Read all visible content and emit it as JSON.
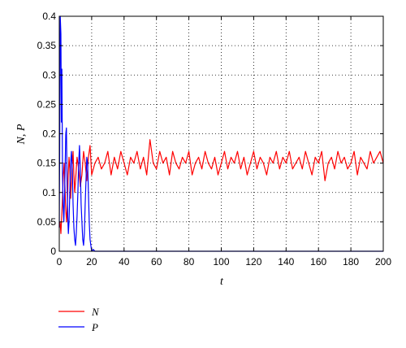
{
  "chart_data": {
    "type": "line",
    "title": "",
    "xlabel": "t",
    "ylabel": "N, P",
    "xlim": [
      0,
      200
    ],
    "ylim": [
      0,
      0.4
    ],
    "xticks": [
      "0",
      "20",
      "40",
      "60",
      "80",
      "100",
      "120",
      "140",
      "160",
      "180",
      "200"
    ],
    "yticks": [
      "0",
      "0.05",
      "0.1",
      "0.15",
      "0.2",
      "0.25",
      "0.3",
      "0.35",
      "0.4"
    ],
    "grid": true,
    "legend_position": "bottom-left",
    "series": [
      {
        "name": "N",
        "color": "#ff0000",
        "points": [
          [
            0,
            0.04
          ],
          [
            0.5,
            0.05
          ],
          [
            1,
            0.03
          ],
          [
            1.5,
            0.06
          ],
          [
            2,
            0.09
          ],
          [
            2.5,
            0.13
          ],
          [
            3,
            0.15
          ],
          [
            3.5,
            0.11
          ],
          [
            4,
            0.07
          ],
          [
            4.5,
            0.05
          ],
          [
            5,
            0.08
          ],
          [
            5.5,
            0.13
          ],
          [
            6,
            0.16
          ],
          [
            6.5,
            0.14
          ],
          [
            7,
            0.09
          ],
          [
            7.5,
            0.12
          ],
          [
            8,
            0.15
          ],
          [
            8.5,
            0.17
          ],
          [
            9,
            0.13
          ],
          [
            9.5,
            0.1
          ],
          [
            10,
            0.12
          ],
          [
            11,
            0.16
          ],
          [
            12,
            0.14
          ],
          [
            13,
            0.11
          ],
          [
            14,
            0.13
          ],
          [
            15,
            0.17
          ],
          [
            16,
            0.15
          ],
          [
            17,
            0.12
          ],
          [
            18,
            0.16
          ],
          [
            19,
            0.18
          ],
          [
            20,
            0.13
          ],
          [
            22,
            0.15
          ],
          [
            24,
            0.16
          ],
          [
            26,
            0.14
          ],
          [
            28,
            0.15
          ],
          [
            30,
            0.17
          ],
          [
            32,
            0.13
          ],
          [
            34,
            0.16
          ],
          [
            36,
            0.14
          ],
          [
            38,
            0.17
          ],
          [
            40,
            0.15
          ],
          [
            42,
            0.13
          ],
          [
            44,
            0.16
          ],
          [
            46,
            0.15
          ],
          [
            48,
            0.17
          ],
          [
            50,
            0.14
          ],
          [
            52,
            0.16
          ],
          [
            54,
            0.13
          ],
          [
            56,
            0.19
          ],
          [
            58,
            0.15
          ],
          [
            60,
            0.14
          ],
          [
            62,
            0.17
          ],
          [
            64,
            0.15
          ],
          [
            66,
            0.16
          ],
          [
            68,
            0.13
          ],
          [
            70,
            0.17
          ],
          [
            72,
            0.15
          ],
          [
            74,
            0.14
          ],
          [
            76,
            0.16
          ],
          [
            78,
            0.15
          ],
          [
            80,
            0.17
          ],
          [
            82,
            0.13
          ],
          [
            84,
            0.15
          ],
          [
            86,
            0.16
          ],
          [
            88,
            0.14
          ],
          [
            90,
            0.17
          ],
          [
            92,
            0.15
          ],
          [
            94,
            0.14
          ],
          [
            96,
            0.16
          ],
          [
            98,
            0.13
          ],
          [
            100,
            0.15
          ],
          [
            102,
            0.17
          ],
          [
            104,
            0.14
          ],
          [
            106,
            0.16
          ],
          [
            108,
            0.15
          ],
          [
            110,
            0.17
          ],
          [
            112,
            0.14
          ],
          [
            114,
            0.16
          ],
          [
            116,
            0.13
          ],
          [
            118,
            0.15
          ],
          [
            120,
            0.17
          ],
          [
            122,
            0.14
          ],
          [
            124,
            0.16
          ],
          [
            126,
            0.15
          ],
          [
            128,
            0.13
          ],
          [
            130,
            0.16
          ],
          [
            132,
            0.15
          ],
          [
            134,
            0.17
          ],
          [
            136,
            0.14
          ],
          [
            138,
            0.16
          ],
          [
            140,
            0.15
          ],
          [
            142,
            0.17
          ],
          [
            144,
            0.14
          ],
          [
            146,
            0.15
          ],
          [
            148,
            0.16
          ],
          [
            150,
            0.14
          ],
          [
            152,
            0.17
          ],
          [
            154,
            0.15
          ],
          [
            156,
            0.13
          ],
          [
            158,
            0.16
          ],
          [
            160,
            0.15
          ],
          [
            162,
            0.17
          ],
          [
            164,
            0.12
          ],
          [
            166,
            0.15
          ],
          [
            168,
            0.16
          ],
          [
            170,
            0.14
          ],
          [
            172,
            0.17
          ],
          [
            174,
            0.15
          ],
          [
            176,
            0.16
          ],
          [
            178,
            0.14
          ],
          [
            180,
            0.15
          ],
          [
            182,
            0.17
          ],
          [
            184,
            0.13
          ],
          [
            186,
            0.16
          ],
          [
            188,
            0.15
          ],
          [
            190,
            0.14
          ],
          [
            192,
            0.17
          ],
          [
            194,
            0.15
          ],
          [
            196,
            0.16
          ],
          [
            198,
            0.17
          ],
          [
            200,
            0.15
          ]
        ]
      },
      {
        "name": "P",
        "color": "#0000ff",
        "points": [
          [
            0,
            0.04
          ],
          [
            0.3,
            0.2
          ],
          [
            0.6,
            0.4
          ],
          [
            1,
            0.37
          ],
          [
            1.3,
            0.22
          ],
          [
            1.6,
            0.31
          ],
          [
            2,
            0.13
          ],
          [
            2.4,
            0.08
          ],
          [
            2.8,
            0.05
          ],
          [
            3.2,
            0.09
          ],
          [
            3.6,
            0.14
          ],
          [
            4,
            0.2
          ],
          [
            4.4,
            0.21
          ],
          [
            4.8,
            0.12
          ],
          [
            5.2,
            0.06
          ],
          [
            5.6,
            0.03
          ],
          [
            6,
            0.05
          ],
          [
            6.5,
            0.1
          ],
          [
            7,
            0.15
          ],
          [
            7.5,
            0.17
          ],
          [
            8,
            0.14
          ],
          [
            8.5,
            0.08
          ],
          [
            9,
            0.04
          ],
          [
            9.5,
            0.02
          ],
          [
            10,
            0.01
          ],
          [
            10.5,
            0.03
          ],
          [
            11,
            0.06
          ],
          [
            11.5,
            0.1
          ],
          [
            12,
            0.15
          ],
          [
            12.5,
            0.18
          ],
          [
            13,
            0.14
          ],
          [
            13.5,
            0.08
          ],
          [
            14,
            0.05
          ],
          [
            14.5,
            0.02
          ],
          [
            15,
            0.01
          ],
          [
            15.5,
            0.03
          ],
          [
            16,
            0.08
          ],
          [
            16.5,
            0.12
          ],
          [
            17,
            0.16
          ],
          [
            17.5,
            0.15
          ],
          [
            18,
            0.1
          ],
          [
            18.5,
            0.05
          ],
          [
            19,
            0.02
          ],
          [
            19.5,
            0.01
          ],
          [
            20,
            0.0
          ],
          [
            21,
            0.003
          ],
          [
            22,
            0.0
          ],
          [
            25,
            0.0
          ],
          [
            30,
            0.0
          ],
          [
            40,
            0.0
          ],
          [
            60,
            0.0
          ],
          [
            80,
            0.0
          ],
          [
            100,
            0.0
          ],
          [
            120,
            0.0
          ],
          [
            140,
            0.0
          ],
          [
            160,
            0.0
          ],
          [
            180,
            0.0
          ],
          [
            200,
            0.0
          ]
        ]
      }
    ]
  }
}
